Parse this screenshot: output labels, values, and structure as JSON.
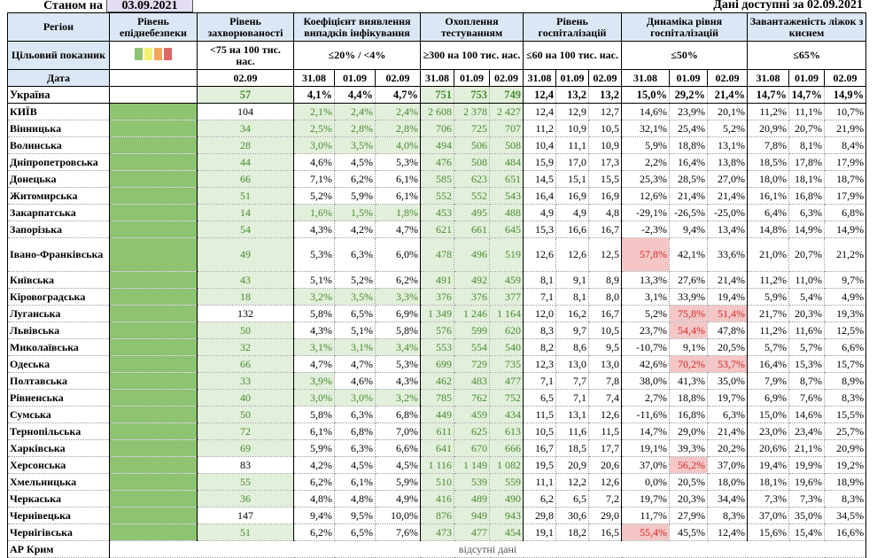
{
  "header": {
    "as_of_label": "Станом на",
    "as_of_date": "03.09.2021",
    "available": "Дані доступні за  02.09.2021"
  },
  "columns": {
    "region": "Регіон",
    "epid": "Рівень епіднебезпеки",
    "incidence": "Рівень захворюваності",
    "coeff": "Коефіцієнт виявлення випадків інфікування",
    "testing": "Охоплення тестуванням",
    "hosp": "Рівень госпіталізацій",
    "dyn": "Динаміка рівня госпіталізацій",
    "beds": "Завантаженість ліжок з киснем"
  },
  "targets": {
    "label": "Цільовий показник",
    "incidence": "<75 на 100 тис. нас.",
    "coeff": "≤20% / <4%",
    "testing": "≥300 на 100 тис. нас.",
    "hosp": "≤60 на 100 тис. нас.",
    "dyn": "≤50%",
    "beds": "≤65%"
  },
  "epid_colors": [
    "#8dc371",
    "#f2ef6e",
    "#f4a65a",
    "#e06565"
  ],
  "dates": {
    "label": "Дата",
    "single": "02.09",
    "d1": "31.08",
    "d2": "01.09",
    "d3": "02.09"
  },
  "rows": [
    [
      "Україна",
      "57",
      "4,1%",
      "4,4%",
      "4,7%",
      "751",
      "753",
      "749",
      "12,4",
      "13,2",
      "13,2",
      "15,0%",
      "29,2%",
      "21,4%",
      "14,7%",
      "14,7%",
      "14,9%"
    ],
    [
      "КИЇВ",
      "104",
      "2,1%",
      "2,4%",
      "2,4%",
      "2 608",
      "2 378",
      "2 427",
      "12,4",
      "12,9",
      "12,7",
      "14,6%",
      "23,9%",
      "20,1%",
      "11,2%",
      "11,1%",
      "10,7%"
    ],
    [
      "Вінницька",
      "34",
      "2,5%",
      "2,8%",
      "2,8%",
      "706",
      "725",
      "707",
      "11,2",
      "10,9",
      "10,5",
      "32,1%",
      "25,4%",
      "5,2%",
      "20,9%",
      "20,7%",
      "21,9%"
    ],
    [
      "Волинська",
      "28",
      "3,0%",
      "3,5%",
      "4,0%",
      "494",
      "506",
      "508",
      "10,4",
      "11,1",
      "10,9",
      "5,9%",
      "18,8%",
      "13,1%",
      "7,8%",
      "8,1%",
      "8,4%"
    ],
    [
      "Дніпропетровська",
      "44",
      "4,6%",
      "4,5%",
      "5,3%",
      "476",
      "508",
      "484",
      "15,9",
      "17,0",
      "17,3",
      "2,2%",
      "16,4%",
      "13,8%",
      "18,5%",
      "17,8%",
      "17,9%"
    ],
    [
      "Донецька",
      "66",
      "7,1%",
      "6,2%",
      "6,1%",
      "585",
      "623",
      "651",
      "14,5",
      "15,1",
      "15,5",
      "25,3%",
      "28,5%",
      "27,0%",
      "18,0%",
      "18,1%",
      "18,7%"
    ],
    [
      "Житомирська",
      "51",
      "5,2%",
      "5,9%",
      "6,1%",
      "552",
      "552",
      "543",
      "16,4",
      "16,9",
      "16,9",
      "12,6%",
      "21,4%",
      "21,4%",
      "16,1%",
      "16,8%",
      "17,9%"
    ],
    [
      "Закарпатська",
      "14",
      "1,6%",
      "1,5%",
      "1,8%",
      "453",
      "495",
      "488",
      "4,9",
      "4,9",
      "4,8",
      "-29,1%",
      "-26,5%",
      "-25,0%",
      "6,4%",
      "6,3%",
      "6,8%"
    ],
    [
      "Запорізька",
      "54",
      "4,3%",
      "4,2%",
      "4,7%",
      "621",
      "661",
      "645",
      "15,3",
      "16,6",
      "16,7",
      "-2,3%",
      "9,4%",
      "13,4%",
      "14,8%",
      "14,9%",
      "14,9%"
    ],
    [
      "Івано-Франківська",
      "49",
      "5,3%",
      "6,3%",
      "6,0%",
      "478",
      "496",
      "519",
      "12,6",
      "12,6",
      "12,5",
      "57,8%",
      "42,1%",
      "33,6%",
      "21,0%",
      "20,7%",
      "21,2%"
    ],
    [
      "Київська",
      "43",
      "5,1%",
      "5,2%",
      "6,2%",
      "491",
      "492",
      "459",
      "8,1",
      "9,1",
      "8,9",
      "13,3%",
      "27,6%",
      "21,4%",
      "11,2%",
      "11,0%",
      "9,7%"
    ],
    [
      "Кіровоградська",
      "18",
      "3,2%",
      "3,5%",
      "3,3%",
      "376",
      "376",
      "377",
      "7,1",
      "8,1",
      "8,0",
      "3,1%",
      "33,9%",
      "19,4%",
      "5,9%",
      "5,4%",
      "4,9%"
    ],
    [
      "Луганська",
      "132",
      "5,8%",
      "6,5%",
      "6,9%",
      "1 349",
      "1 246",
      "1 164",
      "12,0",
      "16,2",
      "16,7",
      "5,2%",
      "75,8%",
      "51,4%",
      "21,7%",
      "20,3%",
      "19,3%"
    ],
    [
      "Львівська",
      "50",
      "4,3%",
      "5,1%",
      "5,8%",
      "576",
      "599",
      "620",
      "8,3",
      "9,7",
      "10,5",
      "23,7%",
      "54,4%",
      "47,8%",
      "11,2%",
      "11,6%",
      "12,5%"
    ],
    [
      "Миколаївська",
      "32",
      "3,1%",
      "3,1%",
      "3,4%",
      "553",
      "554",
      "540",
      "8,2",
      "8,6",
      "9,5",
      "-10,7%",
      "9,1%",
      "20,5%",
      "5,7%",
      "5,7%",
      "6,6%"
    ],
    [
      "Одеська",
      "66",
      "4,7%",
      "4,7%",
      "5,3%",
      "699",
      "729",
      "735",
      "12,3",
      "13,0",
      "13,0",
      "42,6%",
      "70,2%",
      "53,7%",
      "16,4%",
      "15,3%",
      "15,7%"
    ],
    [
      "Полтавська",
      "33",
      "3,9%",
      "4,6%",
      "4,3%",
      "462",
      "483",
      "477",
      "7,1",
      "7,7",
      "7,8",
      "38,0%",
      "41,3%",
      "35,0%",
      "7,9%",
      "8,7%",
      "8,9%"
    ],
    [
      "Рівненська",
      "40",
      "3,0%",
      "3,0%",
      "3,2%",
      "785",
      "762",
      "752",
      "6,5",
      "7,1",
      "7,4",
      "2,7%",
      "18,8%",
      "19,7%",
      "6,9%",
      "7,6%",
      "8,3%"
    ],
    [
      "Сумська",
      "50",
      "5,8%",
      "6,3%",
      "6,8%",
      "449",
      "459",
      "434",
      "11,5",
      "13,1",
      "12,6",
      "-11,6%",
      "16,8%",
      "6,3%",
      "15,0%",
      "14,6%",
      "15,5%"
    ],
    [
      "Тернопільська",
      "72",
      "6,1%",
      "6,8%",
      "7,0%",
      "611",
      "625",
      "613",
      "10,5",
      "11,6",
      "11,5",
      "14,7%",
      "29,0%",
      "21,4%",
      "23,0%",
      "23,4%",
      "25,7%"
    ],
    [
      "Харківська",
      "69",
      "5,9%",
      "6,3%",
      "6,6%",
      "641",
      "670",
      "666",
      "16,7",
      "18,5",
      "17,7",
      "19,1%",
      "39,3%",
      "20,2%",
      "20,6%",
      "21,1%",
      "20,9%"
    ],
    [
      "Херсонська",
      "83",
      "4,2%",
      "4,5%",
      "4,5%",
      "1 116",
      "1 149",
      "1 082",
      "19,5",
      "20,9",
      "20,6",
      "37,0%",
      "56,2%",
      "37,0%",
      "19,4%",
      "19,9%",
      "19,2%"
    ],
    [
      "Хмельницька",
      "55",
      "6,2%",
      "6,1%",
      "5,9%",
      "510",
      "539",
      "559",
      "11,1",
      "12,2",
      "12,6",
      "0,0%",
      "20,5%",
      "18,0%",
      "18,1%",
      "19,6%",
      "18,9%"
    ],
    [
      "Черкаська",
      "36",
      "4,8%",
      "4,8%",
      "4,9%",
      "416",
      "489",
      "490",
      "6,2",
      "6,5",
      "7,2",
      "19,7%",
      "20,3%",
      "34,4%",
      "7,3%",
      "7,3%",
      "8,3%"
    ],
    [
      "Чернівецька",
      "147",
      "9,4%",
      "9,5%",
      "10,0%",
      "876",
      "949",
      "943",
      "29,8",
      "30,6",
      "29,0",
      "11,7%",
      "27,9%",
      "8,3%",
      "37,0%",
      "35,0%",
      "34,5%"
    ],
    [
      "Чернігівська",
      "51",
      "6,2%",
      "6,5%",
      "7,6%",
      "473",
      "477",
      "454",
      "19,1",
      "18,2",
      "16,5",
      "55,4%",
      "45,5%",
      "12,4%",
      "15,6%",
      "15,4%",
      "16,6%"
    ]
  ],
  "crimea": {
    "name": "АР Крим",
    "note": "відсутні дані"
  }
}
